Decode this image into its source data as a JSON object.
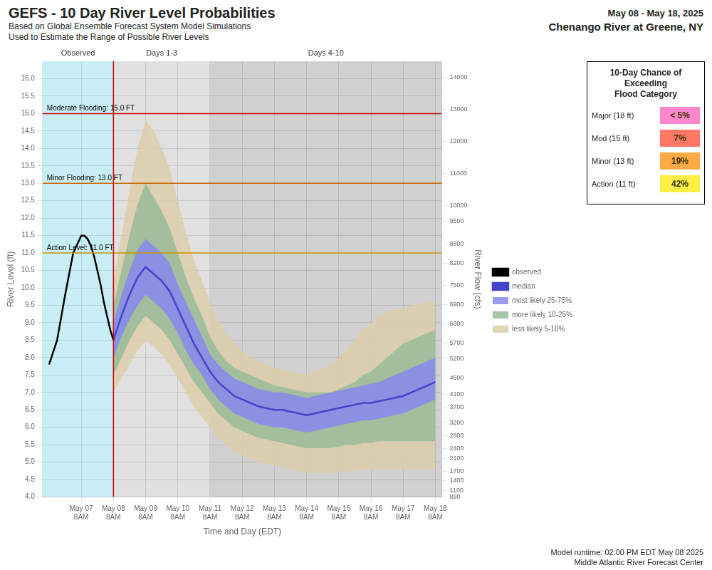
{
  "chart_data": {
    "type": "line",
    "title": "GEFS - 10 Day River Level Probabilities",
    "subtitle": [
      "Based on Global Ensemble Forecast System Model Simulations",
      "Used to Estimate the Range of Possible River Levels"
    ],
    "annotations": [
      "May 08 - May 18, 2025",
      "Chenango River at Greene, NY"
    ],
    "footer": [
      "Model runtime: 02:00 PM EDT May 08 2025",
      "Middle Atlantic River Forecast Center"
    ],
    "xlabel": "Time and Day (EDT)",
    "ylabel": "River Level (ft)",
    "y2label": "River Flow (cfs)",
    "xlim": [
      -1.2,
      11.2
    ],
    "xticks": [
      {
        "value": 0,
        "label": "May 07\n8AM"
      },
      {
        "value": 1,
        "label": "May 08\n8AM"
      },
      {
        "value": 2,
        "label": "May 09\n8AM"
      },
      {
        "value": 3,
        "label": "May 10\n8AM"
      },
      {
        "value": 4,
        "label": "May 11\n8AM"
      },
      {
        "value": 5,
        "label": "May 12\n8AM"
      },
      {
        "value": 6,
        "label": "May 13\n8AM"
      },
      {
        "value": 7,
        "label": "May 14\n8AM"
      },
      {
        "value": 8,
        "label": "May 15\n8AM"
      },
      {
        "value": 9,
        "label": "May 16\n8AM"
      },
      {
        "value": 10,
        "label": "May 17\n8AM"
      },
      {
        "value": 11,
        "label": "May 18\n8AM"
      }
    ],
    "ylim": [
      4.0,
      16.5
    ],
    "yticks": [
      {
        "value": 4.0,
        "label": "4.0"
      },
      4.5,
      {
        "value": 5.0,
        "label": "5.0"
      },
      5.5,
      {
        "value": 6.0,
        "label": "6.0"
      },
      6.5,
      {
        "value": 7.0,
        "label": "7.0"
      },
      7.5,
      {
        "value": 8.0,
        "label": "8.0"
      },
      8.5,
      {
        "value": 9.0,
        "label": "9.0"
      },
      9.5,
      {
        "value": 10.0,
        "label": "10.0"
      },
      10.5,
      {
        "value": 11.0,
        "label": "11.0"
      },
      11.5,
      {
        "value": 12.0,
        "label": "12.0"
      },
      12.5,
      {
        "value": 13.0,
        "label": "13.0"
      },
      13.5,
      {
        "value": 14.0,
        "label": "14.0"
      },
      14.5,
      {
        "value": 15.0,
        "label": "15.0"
      },
      15.5,
      {
        "value": 16.0,
        "label": "16.0"
      }
    ],
    "y2lim": [
      890,
      14500
    ],
    "y2ticks": [
      890,
      1100,
      1400,
      1700,
      2100,
      2400,
      2800,
      3200,
      3700,
      4100,
      4600,
      5200,
      5700,
      6300,
      6900,
      7500,
      8200,
      8800,
      9500,
      10000,
      11000,
      12000,
      13000,
      14000
    ],
    "grid": true,
    "legend": "right",
    "series": [
      {
        "name": "observed",
        "type": "line",
        "color": "black",
        "x": [
          -1.0,
          -0.75,
          -0.5,
          -0.25,
          0.0,
          0.1,
          0.2,
          0.3,
          0.4,
          0.5,
          0.6,
          0.7,
          0.8,
          0.9,
          1.0
        ],
        "values": [
          7.8,
          8.5,
          9.8,
          11.0,
          11.5,
          11.5,
          11.4,
          11.2,
          10.9,
          10.5,
          10.1,
          9.6,
          9.2,
          8.8,
          8.5
        ]
      },
      {
        "name": "median",
        "type": "line",
        "color": "#4444cc",
        "x": [
          1.0,
          1.25,
          1.5,
          1.75,
          2.0,
          2.25,
          2.5,
          2.75,
          3.0,
          3.25,
          3.5,
          3.75,
          4.0,
          4.25,
          4.5,
          4.75,
          5.0,
          5.25,
          5.5,
          5.75,
          6.0,
          6.25,
          6.5,
          6.75,
          7.0,
          7.25,
          7.5,
          7.75,
          8.0,
          8.25,
          8.5,
          8.75,
          9.0,
          9.25,
          9.5,
          9.75,
          10.0,
          10.25,
          10.5,
          10.75,
          11.0
        ],
        "values": [
          8.5,
          9.2,
          9.8,
          10.3,
          10.6,
          10.4,
          10.2,
          9.9,
          9.4,
          8.9,
          8.4,
          8.0,
          7.6,
          7.3,
          7.1,
          6.9,
          6.8,
          6.7,
          6.6,
          6.55,
          6.5,
          6.5,
          6.45,
          6.4,
          6.35,
          6.4,
          6.45,
          6.5,
          6.55,
          6.6,
          6.65,
          6.7,
          6.7,
          6.75,
          6.8,
          6.85,
          6.9,
          7.0,
          7.1,
          7.2,
          7.3
        ]
      },
      {
        "name": "most likely 25-75%",
        "type": "band",
        "color": "#8888ee",
        "x": [
          1.0,
          1.25,
          1.5,
          1.75,
          2.0,
          2.25,
          2.5,
          2.75,
          3.0,
          3.25,
          3.5,
          3.75,
          4.0,
          4.25,
          4.5,
          4.75,
          5.0,
          5.25,
          5.5,
          5.75,
          6.0,
          6.25,
          6.5,
          6.75,
          7.0,
          7.25,
          7.5,
          7.75,
          8.0,
          8.25,
          8.5,
          8.75,
          9.0,
          9.25,
          9.5,
          9.75,
          10.0,
          10.25,
          10.5,
          10.75,
          11.0
        ],
        "low": [
          8.0,
          8.6,
          9.1,
          9.5,
          9.8,
          9.6,
          9.4,
          9.1,
          8.7,
          8.2,
          7.8,
          7.5,
          7.1,
          6.8,
          6.6,
          6.4,
          6.3,
          6.2,
          6.1,
          6.05,
          6.0,
          6.0,
          5.95,
          5.9,
          5.85,
          5.9,
          5.95,
          6.0,
          6.05,
          6.1,
          6.15,
          6.2,
          6.2,
          6.25,
          6.3,
          6.35,
          6.4,
          6.5,
          6.6,
          6.7,
          6.8
        ],
        "high": [
          9.0,
          9.8,
          10.5,
          11.1,
          11.4,
          11.2,
          11.0,
          10.7,
          10.1,
          9.6,
          9.1,
          8.6,
          8.1,
          7.8,
          7.6,
          7.4,
          7.3,
          7.2,
          7.1,
          7.05,
          7.0,
          7.0,
          6.95,
          6.9,
          6.85,
          6.9,
          6.95,
          7.0,
          7.05,
          7.1,
          7.15,
          7.2,
          7.25,
          7.3,
          7.4,
          7.5,
          7.6,
          7.7,
          7.8,
          7.9,
          8.0
        ]
      },
      {
        "name": "more likely 10-25%",
        "type": "band",
        "color": "#99bb99",
        "x": [
          1.0,
          1.25,
          1.5,
          1.75,
          2.0,
          2.25,
          2.5,
          2.75,
          3.0,
          3.25,
          3.5,
          3.75,
          4.0,
          4.25,
          4.5,
          4.75,
          5.0,
          5.25,
          5.5,
          5.75,
          6.0,
          6.25,
          6.5,
          6.75,
          7.0,
          7.25,
          7.5,
          7.75,
          8.0,
          8.25,
          8.5,
          8.75,
          9.0,
          9.25,
          9.5,
          9.75,
          10.0,
          10.25,
          10.5,
          10.75,
          11.0
        ],
        "low": [
          7.5,
          8.0,
          8.5,
          8.9,
          9.2,
          9.0,
          8.8,
          8.5,
          8.1,
          7.7,
          7.3,
          7.0,
          6.7,
          6.4,
          6.2,
          6.0,
          5.9,
          5.8,
          5.7,
          5.65,
          5.6,
          5.55,
          5.5,
          5.45,
          5.4,
          5.4,
          5.4,
          5.4,
          5.45,
          5.5,
          5.5,
          5.55,
          5.55,
          5.6,
          5.6,
          5.6,
          5.6,
          5.6,
          5.6,
          5.6,
          5.6
        ],
        "high": [
          9.5,
          10.5,
          11.5,
          12.4,
          13.0,
          12.6,
          12.2,
          11.7,
          11.0,
          10.3,
          9.7,
          9.2,
          8.6,
          8.2,
          7.9,
          7.7,
          7.6,
          7.5,
          7.4,
          7.3,
          7.2,
          7.15,
          7.1,
          7.05,
          7.0,
          7.0,
          7.0,
          7.0,
          7.1,
          7.2,
          7.3,
          7.5,
          7.6,
          7.8,
          8.0,
          8.2,
          8.4,
          8.5,
          8.6,
          8.7,
          8.8
        ]
      },
      {
        "name": "less likely 5-10%",
        "type": "band",
        "color": "#ddccaa",
        "x": [
          1.0,
          1.25,
          1.5,
          1.75,
          2.0,
          2.25,
          2.5,
          2.75,
          3.0,
          3.25,
          3.5,
          3.75,
          4.0,
          4.25,
          4.5,
          4.75,
          5.0,
          5.25,
          5.5,
          5.75,
          6.0,
          6.25,
          6.5,
          6.75,
          7.0,
          7.25,
          7.5,
          7.75,
          8.0,
          8.25,
          8.5,
          8.75,
          9.0,
          9.25,
          9.5,
          9.75,
          10.0,
          10.25,
          10.5,
          10.75,
          11.0
        ],
        "low": [
          7.0,
          7.4,
          7.8,
          8.2,
          8.5,
          8.3,
          8.1,
          7.8,
          7.4,
          7.0,
          6.6,
          6.3,
          6.0,
          5.7,
          5.5,
          5.3,
          5.2,
          5.1,
          5.0,
          4.95,
          4.9,
          4.85,
          4.8,
          4.75,
          4.7,
          4.7,
          4.7,
          4.7,
          4.7,
          4.75,
          4.75,
          4.8,
          4.8,
          4.8,
          4.8,
          4.8,
          4.8,
          4.8,
          4.8,
          4.8,
          4.8
        ],
        "high": [
          10.2,
          11.5,
          12.8,
          14.0,
          14.8,
          14.5,
          14.0,
          13.4,
          12.5,
          11.6,
          10.8,
          10.2,
          9.6,
          9.1,
          8.7,
          8.4,
          8.2,
          8.0,
          7.9,
          7.8,
          7.7,
          7.65,
          7.6,
          7.55,
          7.5,
          7.6,
          7.7,
          7.8,
          8.0,
          8.2,
          8.5,
          8.8,
          9.0,
          9.2,
          9.3,
          9.4,
          9.4,
          9.5,
          9.55,
          9.6,
          9.6
        ]
      }
    ],
    "regions": [
      {
        "label": "Observed",
        "start": -1.2,
        "end": 1.0,
        "color": "#c8eef5"
      },
      {
        "label": "Days 1-3",
        "start": 1.0,
        "end": 4.0,
        "color": "#e0e0e0"
      },
      {
        "label": "Days 4-10",
        "start": 4.0,
        "end": 11.2,
        "color": "#d0d0d0"
      }
    ],
    "vlines": [
      {
        "x": 1.0,
        "color": "#cc0000"
      }
    ],
    "hlines": [
      {
        "y": 15.0,
        "label": "Moderate Flooding: 15.0 FT",
        "color": "#cc0000"
      },
      {
        "y": 13.0,
        "label": "Minor Flooding: 13.0 FT",
        "color": "#cc6600"
      },
      {
        "y": 11.0,
        "label": "Action Level: 11.0 FT",
        "color": "#cc9900"
      }
    ],
    "table": {
      "title": "10-Day Chance of\nExceeding\nFlood Category",
      "rows": [
        {
          "label": "Major (18 ft)",
          "value": "< 5%",
          "color": "#ff88cc"
        },
        {
          "label": "Mod (15 ft)",
          "value": "7%",
          "color": "#ff7766"
        },
        {
          "label": "Minor (13 ft)",
          "value": "19%",
          "color": "#ffaa44"
        },
        {
          "label": "Action (11 ft)",
          "value": "42%",
          "color": "#ffee44"
        }
      ]
    }
  }
}
